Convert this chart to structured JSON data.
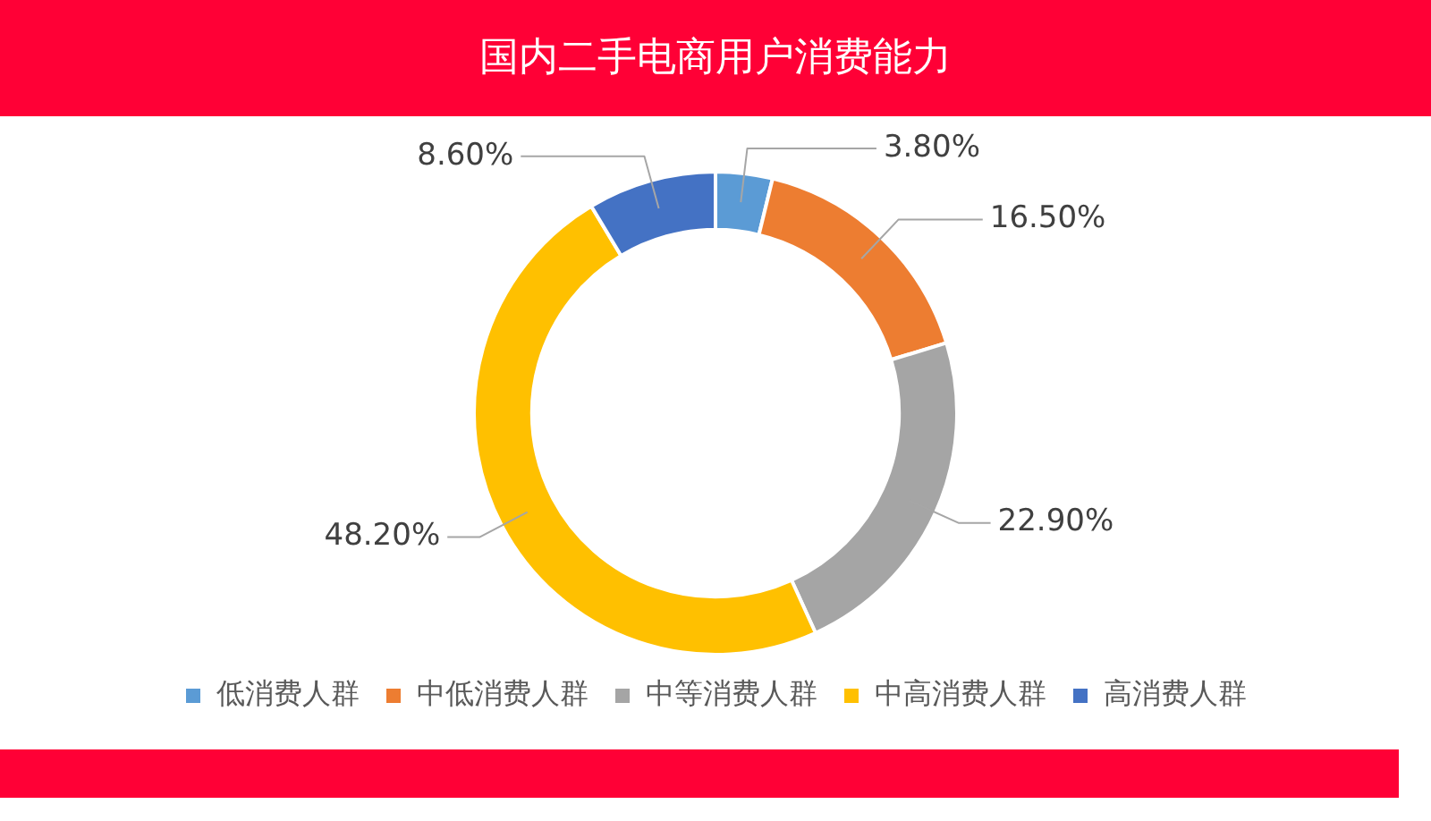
{
  "chart_data": {
    "type": "donut",
    "title": "国内二手电商用户消费能力",
    "categories": [
      "低消费人群",
      "中低消费人群",
      "中等消费人群",
      "中高消费人群",
      "高消费人群"
    ],
    "values": [
      3.8,
      16.5,
      22.9,
      48.2,
      8.6
    ],
    "colors": [
      "#5b9bd5",
      "#ed7d31",
      "#a5a5a5",
      "#ffc000",
      "#4472c4"
    ],
    "value_labels": [
      "3.80%",
      "16.50%",
      "22.90%",
      "48.20%",
      "8.60%"
    ],
    "legend": "bottom"
  }
}
